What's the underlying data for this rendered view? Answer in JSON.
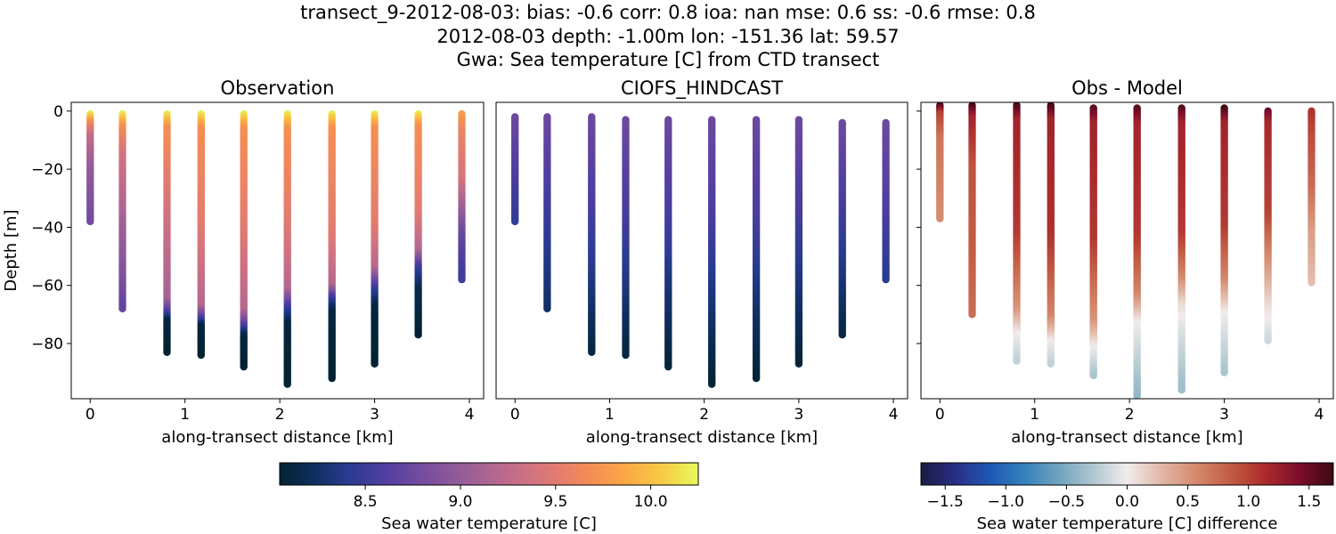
{
  "figure": {
    "title_lines": [
      "transect_9-2012-08-03: bias: -0.6  corr: 0.8  ioa: nan  mse: 0.6  ss: -0.6  rmse: 0.8",
      "2012-08-03 depth: -1.00m lon: -151.36 lat: 59.57",
      "Gwa: Sea temperature [C] from CTD transect"
    ]
  },
  "chart_data": [
    {
      "type": "scatter",
      "title": "Observation",
      "xlabel": "along-transect distance [km]",
      "ylabel": "Depth [m]",
      "xlim": [
        -0.2,
        4.15
      ],
      "ylim": [
        -99,
        3
      ],
      "xticks": [
        0,
        1,
        2,
        3,
        4
      ],
      "yticks": [
        0,
        -20,
        -40,
        -60,
        -80
      ],
      "colormap": "thermal",
      "color_range": [
        8.05,
        10.25
      ],
      "stations": [
        {
          "x": 0.0,
          "top": -1,
          "bottom": -38,
          "profile": [
            [
              0,
              10.2
            ],
            [
              0.08,
              9.7
            ],
            [
              0.2,
              9.3
            ],
            [
              0.5,
              9.0
            ],
            [
              1,
              8.8
            ]
          ]
        },
        {
          "x": 0.34,
          "top": -1,
          "bottom": -68,
          "profile": [
            [
              0,
              10.2
            ],
            [
              0.07,
              9.7
            ],
            [
              0.2,
              9.4
            ],
            [
              0.55,
              9.1
            ],
            [
              0.8,
              8.9
            ],
            [
              1,
              8.7
            ]
          ]
        },
        {
          "x": 0.81,
          "top": -1,
          "bottom": -83,
          "profile": [
            [
              0,
              10.2
            ],
            [
              0.06,
              9.7
            ],
            [
              0.4,
              9.4
            ],
            [
              0.78,
              9.1
            ],
            [
              0.85,
              8.4
            ],
            [
              0.87,
              8.1
            ],
            [
              1,
              8.05
            ]
          ]
        },
        {
          "x": 1.17,
          "top": -1,
          "bottom": -84,
          "profile": [
            [
              0,
              10.2
            ],
            [
              0.06,
              9.7
            ],
            [
              0.45,
              9.5
            ],
            [
              0.8,
              9.2
            ],
            [
              0.85,
              8.6
            ],
            [
              0.88,
              8.1
            ],
            [
              1,
              8.05
            ]
          ]
        },
        {
          "x": 1.62,
          "top": -1,
          "bottom": -88,
          "profile": [
            [
              0,
              10.2
            ],
            [
              0.06,
              9.7
            ],
            [
              0.45,
              9.5
            ],
            [
              0.78,
              9.2
            ],
            [
              0.84,
              8.6
            ],
            [
              0.88,
              8.1
            ],
            [
              1,
              8.05
            ]
          ]
        },
        {
          "x": 2.08,
          "top": -1,
          "bottom": -94,
          "profile": [
            [
              0,
              10.2
            ],
            [
              0.06,
              9.7
            ],
            [
              0.4,
              9.5
            ],
            [
              0.65,
              9.2
            ],
            [
              0.72,
              8.5
            ],
            [
              0.78,
              8.1
            ],
            [
              1,
              8.05
            ]
          ]
        },
        {
          "x": 2.55,
          "top": -1,
          "bottom": -92,
          "profile": [
            [
              0,
              10.2
            ],
            [
              0.06,
              9.7
            ],
            [
              0.45,
              9.5
            ],
            [
              0.65,
              9.2
            ],
            [
              0.7,
              8.5
            ],
            [
              0.75,
              8.1
            ],
            [
              1,
              8.05
            ]
          ]
        },
        {
          "x": 3.0,
          "top": -1,
          "bottom": -87,
          "profile": [
            [
              0,
              10.2
            ],
            [
              0.06,
              9.7
            ],
            [
              0.45,
              9.5
            ],
            [
              0.62,
              9.2
            ],
            [
              0.7,
              8.5
            ],
            [
              0.78,
              8.1
            ],
            [
              1,
              8.05
            ]
          ]
        },
        {
          "x": 3.46,
          "top": -1,
          "bottom": -77,
          "profile": [
            [
              0,
              10.2
            ],
            [
              0.06,
              9.7
            ],
            [
              0.45,
              9.5
            ],
            [
              0.62,
              9.2
            ],
            [
              0.7,
              8.5
            ],
            [
              0.8,
              8.15
            ],
            [
              1,
              8.05
            ]
          ]
        },
        {
          "x": 3.92,
          "top": -1,
          "bottom": -58,
          "profile": [
            [
              0,
              9.8
            ],
            [
              0.1,
              9.6
            ],
            [
              0.4,
              9.4
            ],
            [
              0.6,
              9.0
            ],
            [
              0.75,
              8.7
            ],
            [
              1,
              8.5
            ]
          ]
        }
      ]
    },
    {
      "type": "scatter",
      "title": "CIOFS_HINDCAST",
      "xlabel": "along-transect distance [km]",
      "ylabel": "",
      "xlim": [
        -0.2,
        4.15
      ],
      "ylim": [
        -99,
        3
      ],
      "xticks": [
        0,
        1,
        2,
        3,
        4
      ],
      "yticks": [
        0,
        -20,
        -40,
        -60,
        -80
      ],
      "colormap": "thermal",
      "color_range": [
        8.05,
        10.25
      ],
      "stations": [
        {
          "x": 0.0,
          "top": -2,
          "bottom": -38,
          "profile": [
            [
              0,
              8.75
            ],
            [
              0.5,
              8.6
            ],
            [
              1,
              8.45
            ]
          ]
        },
        {
          "x": 0.34,
          "top": -2,
          "bottom": -68,
          "profile": [
            [
              0,
              8.75
            ],
            [
              0.5,
              8.5
            ],
            [
              1,
              8.25
            ]
          ]
        },
        {
          "x": 0.81,
          "top": -2,
          "bottom": -83,
          "profile": [
            [
              0,
              8.75
            ],
            [
              0.4,
              8.55
            ],
            [
              0.7,
              8.35
            ],
            [
              1,
              8.1
            ]
          ]
        },
        {
          "x": 1.17,
          "top": -3,
          "bottom": -84,
          "profile": [
            [
              0,
              8.75
            ],
            [
              0.4,
              8.55
            ],
            [
              0.7,
              8.35
            ],
            [
              1,
              8.1
            ]
          ]
        },
        {
          "x": 1.62,
          "top": -3,
          "bottom": -88,
          "profile": [
            [
              0,
              8.75
            ],
            [
              0.4,
              8.55
            ],
            [
              0.7,
              8.3
            ],
            [
              1,
              8.08
            ]
          ]
        },
        {
          "x": 2.08,
          "top": -3,
          "bottom": -94,
          "profile": [
            [
              0,
              8.75
            ],
            [
              0.4,
              8.55
            ],
            [
              0.7,
              8.3
            ],
            [
              1,
              8.06
            ]
          ]
        },
        {
          "x": 2.55,
          "top": -3,
          "bottom": -92,
          "profile": [
            [
              0,
              8.75
            ],
            [
              0.4,
              8.55
            ],
            [
              0.7,
              8.3
            ],
            [
              1,
              8.06
            ]
          ]
        },
        {
          "x": 3.0,
          "top": -3,
          "bottom": -87,
          "profile": [
            [
              0,
              8.75
            ],
            [
              0.4,
              8.55
            ],
            [
              0.7,
              8.3
            ],
            [
              1,
              8.08
            ]
          ]
        },
        {
          "x": 3.46,
          "top": -4,
          "bottom": -77,
          "profile": [
            [
              0,
              8.75
            ],
            [
              0.4,
              8.55
            ],
            [
              0.7,
              8.35
            ],
            [
              1,
              8.12
            ]
          ]
        },
        {
          "x": 3.92,
          "top": -4,
          "bottom": -58,
          "profile": [
            [
              0,
              8.75
            ],
            [
              0.5,
              8.6
            ],
            [
              1,
              8.4
            ]
          ]
        }
      ]
    },
    {
      "type": "scatter",
      "title": "Obs - Model",
      "xlabel": "along-transect distance [km]",
      "ylabel": "",
      "xlim": [
        -0.2,
        4.15
      ],
      "ylim": [
        -99,
        3
      ],
      "xticks": [
        0,
        1,
        2,
        3,
        4
      ],
      "yticks": [
        0,
        -20,
        -40,
        -60,
        -80
      ],
      "colormap": "diverging-balance",
      "color_range": [
        -1.7,
        1.7
      ],
      "stations": [
        {
          "x": 0.0,
          "top": 2,
          "bottom": -37,
          "profile": [
            [
              0,
              1.7
            ],
            [
              0.08,
              1.0
            ],
            [
              0.3,
              0.7
            ],
            [
              1,
              0.55
            ]
          ]
        },
        {
          "x": 0.34,
          "top": 2,
          "bottom": -70,
          "profile": [
            [
              0,
              1.7
            ],
            [
              0.06,
              1.2
            ],
            [
              0.3,
              0.9
            ],
            [
              0.7,
              0.85
            ],
            [
              1,
              0.75
            ]
          ]
        },
        {
          "x": 0.81,
          "top": 2,
          "bottom": -86,
          "profile": [
            [
              0,
              1.7
            ],
            [
              0.06,
              1.2
            ],
            [
              0.5,
              1.05
            ],
            [
              0.8,
              0.5
            ],
            [
              0.9,
              0.0
            ],
            [
              1,
              -0.2
            ]
          ]
        },
        {
          "x": 1.17,
          "top": 2,
          "bottom": -87,
          "profile": [
            [
              0,
              1.7
            ],
            [
              0.06,
              1.2
            ],
            [
              0.5,
              1.1
            ],
            [
              0.82,
              0.6
            ],
            [
              0.92,
              0.0
            ],
            [
              1,
              -0.2
            ]
          ]
        },
        {
          "x": 1.62,
          "top": 1,
          "bottom": -91,
          "profile": [
            [
              0,
              1.6
            ],
            [
              0.06,
              1.2
            ],
            [
              0.5,
              1.05
            ],
            [
              0.8,
              0.5
            ],
            [
              0.9,
              0.0
            ],
            [
              1,
              -0.3
            ]
          ]
        },
        {
          "x": 2.08,
          "top": 1,
          "bottom": -98,
          "profile": [
            [
              0,
              1.6
            ],
            [
              0.06,
              1.2
            ],
            [
              0.45,
              1.05
            ],
            [
              0.65,
              0.6
            ],
            [
              0.75,
              0.0
            ],
            [
              1,
              -0.4
            ]
          ]
        },
        {
          "x": 2.55,
          "top": 1,
          "bottom": -96,
          "profile": [
            [
              0,
              1.6
            ],
            [
              0.06,
              1.2
            ],
            [
              0.45,
              1.05
            ],
            [
              0.6,
              0.6
            ],
            [
              0.7,
              0.1
            ],
            [
              0.8,
              -0.1
            ],
            [
              1,
              -0.35
            ]
          ]
        },
        {
          "x": 3.0,
          "top": 1,
          "bottom": -90,
          "profile": [
            [
              0,
              1.7
            ],
            [
              0.06,
              1.2
            ],
            [
              0.45,
              1.05
            ],
            [
              0.65,
              0.6
            ],
            [
              0.78,
              0.0
            ],
            [
              1,
              -0.3
            ]
          ]
        },
        {
          "x": 3.46,
          "top": 0,
          "bottom": -79,
          "profile": [
            [
              0,
              1.5
            ],
            [
              0.06,
              1.15
            ],
            [
              0.45,
              1.0
            ],
            [
              0.65,
              0.55
            ],
            [
              0.85,
              0.1
            ],
            [
              1,
              -0.15
            ]
          ]
        },
        {
          "x": 3.92,
          "top": 0,
          "bottom": -59,
          "profile": [
            [
              0,
              1.1
            ],
            [
              0.15,
              0.95
            ],
            [
              0.45,
              0.75
            ],
            [
              0.7,
              0.45
            ],
            [
              1,
              0.25
            ]
          ]
        }
      ]
    }
  ],
  "colorbars": [
    {
      "label": "Sea water temperature [C]",
      "range": [
        8.05,
        10.25
      ],
      "ticks": [
        "8.5",
        "9.0",
        "9.5",
        "10.0"
      ],
      "tick_values": [
        8.5,
        9.0,
        9.5,
        10.0
      ],
      "colormap": "thermal"
    },
    {
      "label": "Sea water temperature [C] difference",
      "range": [
        -1.7,
        1.7
      ],
      "ticks": [
        "−1.5",
        "−1.0",
        "−0.5",
        "0.0",
        "0.5",
        "1.0",
        "1.5"
      ],
      "tick_values": [
        -1.5,
        -1.0,
        -0.5,
        0.0,
        0.5,
        1.0,
        1.5
      ],
      "colormap": "diverging-balance"
    }
  ],
  "colormaps": {
    "thermal": [
      "#032333",
      "#0f2f61",
      "#2a3c92",
      "#513ea0",
      "#724c9f",
      "#8e5a9a",
      "#ad6691",
      "#cb7085",
      "#e47d6e",
      "#f58f52",
      "#fbab44",
      "#f6cc47",
      "#e8fa5b"
    ],
    "diverging-balance": [
      "#181c43",
      "#2a2e85",
      "#1d58b4",
      "#3481bb",
      "#6fa3bd",
      "#aec7cf",
      "#f1ecec",
      "#e1b7a6",
      "#d48a6e",
      "#c35c44",
      "#ab2b2c",
      "#7d0e2b",
      "#3c0912"
    ]
  }
}
